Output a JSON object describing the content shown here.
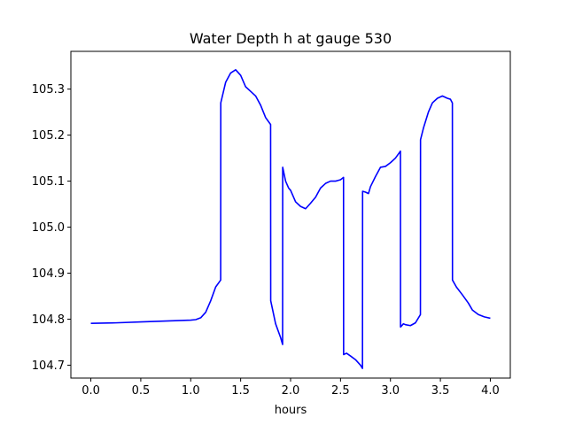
{
  "chart_data": {
    "type": "line",
    "title": "Water Depth h at gauge 530",
    "xlabel": "hours",
    "ylabel": "",
    "xlim": [
      -0.2,
      4.2
    ],
    "ylim": [
      104.672,
      105.382
    ],
    "xticks": [
      0.0,
      0.5,
      1.0,
      1.5,
      2.0,
      2.5,
      3.0,
      3.5,
      4.0
    ],
    "xtick_labels": [
      "0.0",
      "0.5",
      "1.0",
      "1.5",
      "2.0",
      "2.5",
      "3.0",
      "3.5",
      "4.0"
    ],
    "yticks": [
      104.7,
      104.8,
      104.9,
      105.0,
      105.1,
      105.2,
      105.3
    ],
    "ytick_labels": [
      "104.7",
      "104.8",
      "104.9",
      "105.0",
      "105.1",
      "105.2",
      "105.3"
    ],
    "grid": false,
    "series": [
      {
        "color": "#0000ff",
        "x": [
          0.0,
          0.25,
          0.5,
          0.75,
          1.0,
          1.05,
          1.1,
          1.15,
          1.2,
          1.25,
          1.3,
          1.301,
          1.35,
          1.4,
          1.45,
          1.5,
          1.55,
          1.6,
          1.65,
          1.7,
          1.75,
          1.8,
          1.801,
          1.85,
          1.9,
          1.92,
          1.921,
          1.95,
          1.98,
          2.0,
          2.05,
          2.1,
          2.15,
          2.2,
          2.25,
          2.3,
          2.35,
          2.4,
          2.45,
          2.5,
          2.53,
          2.531,
          2.56,
          2.6,
          2.65,
          2.7,
          2.72,
          2.721,
          2.75,
          2.78,
          2.8,
          2.85,
          2.9,
          2.95,
          3.0,
          3.05,
          3.1,
          3.101,
          3.13,
          3.15,
          3.2,
          3.25,
          3.3,
          3.301,
          3.33,
          3.38,
          3.42,
          3.47,
          3.52,
          3.57,
          3.6,
          3.62,
          3.621,
          3.66,
          3.72,
          3.78,
          3.82,
          3.88,
          3.94,
          4.0
        ],
        "y": [
          104.791,
          104.792,
          104.794,
          104.796,
          104.798,
          104.799,
          104.803,
          104.815,
          104.84,
          104.87,
          104.885,
          105.27,
          105.315,
          105.335,
          105.342,
          105.33,
          105.305,
          105.295,
          105.285,
          105.265,
          105.238,
          105.223,
          104.84,
          104.79,
          104.76,
          104.745,
          105.13,
          105.1,
          105.085,
          105.08,
          105.055,
          105.045,
          105.04,
          105.052,
          105.065,
          105.085,
          105.095,
          105.1,
          105.1,
          105.103,
          105.108,
          104.723,
          104.726,
          104.72,
          104.712,
          104.7,
          104.693,
          105.078,
          105.076,
          105.073,
          105.088,
          105.11,
          105.13,
          105.132,
          105.14,
          105.15,
          105.165,
          104.783,
          104.79,
          104.788,
          104.786,
          104.792,
          104.81,
          105.19,
          105.215,
          105.25,
          105.27,
          105.28,
          105.285,
          105.28,
          105.278,
          105.27,
          104.885,
          104.87,
          104.853,
          104.835,
          104.82,
          104.81,
          104.805,
          104.802
        ]
      }
    ]
  }
}
